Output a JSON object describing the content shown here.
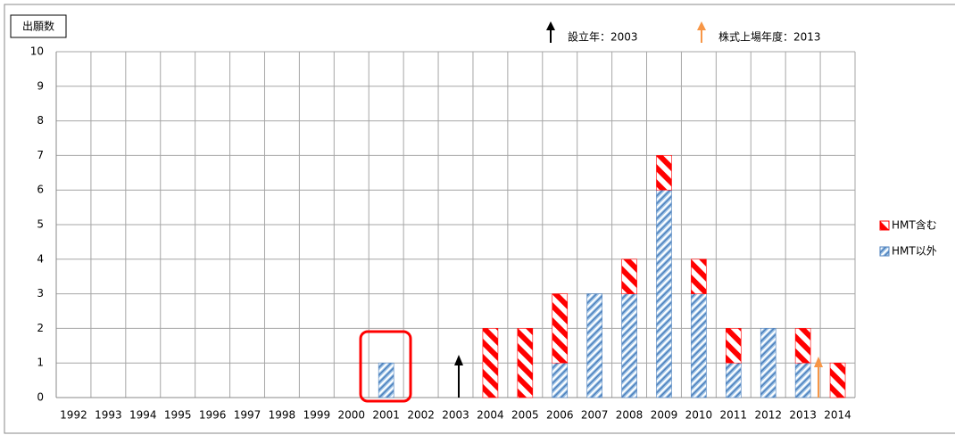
{
  "chart_data": {
    "type": "bar",
    "stacked": true,
    "y_label": "出願数",
    "annotations": [
      "設立年：2003",
      "株式上場年度：2013"
    ],
    "categories": [
      "1992",
      "1993",
      "1994",
      "1995",
      "1996",
      "1997",
      "1998",
      "1999",
      "2000",
      "2001",
      "2002",
      "2003",
      "2004",
      "2005",
      "2006",
      "2007",
      "2008",
      "2009",
      "2010",
      "2011",
      "2012",
      "2013",
      "2014"
    ],
    "series": [
      {
        "name": "HMT以外",
        "color": "#4f81bd",
        "values": [
          0,
          0,
          0,
          0,
          0,
          0,
          0,
          0,
          0,
          1,
          0,
          0,
          0,
          0,
          1,
          3,
          3,
          6,
          3,
          1,
          2,
          1,
          0
        ]
      },
      {
        "name": "HMT含む",
        "color": "#ff0000",
        "values": [
          0,
          0,
          0,
          0,
          0,
          0,
          0,
          0,
          0,
          0,
          0,
          0,
          2,
          2,
          2,
          0,
          1,
          1,
          1,
          1,
          0,
          1,
          1
        ]
      }
    ],
    "ylim": [
      0,
      10
    ],
    "yticks": [
      0,
      1,
      2,
      3,
      4,
      5,
      6,
      7,
      8,
      9,
      10
    ],
    "grid": true,
    "legend": "right"
  }
}
